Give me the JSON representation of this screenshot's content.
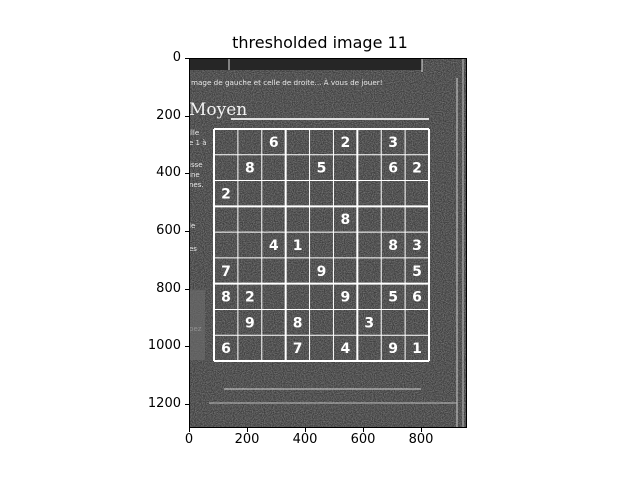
{
  "figure": {
    "title": "thresholded image 11",
    "x_ticks": [
      "0",
      "200",
      "400",
      "600",
      "800"
    ],
    "y_ticks": [
      "0",
      "200",
      "400",
      "600",
      "800",
      "1000",
      "1200"
    ]
  },
  "image": {
    "header_text": "mage de gauche et celle de droite... À vous de jouer!",
    "difficulty": "Moyen",
    "side_snippets": [
      "ille",
      "e 1 à",
      "isse",
      "ine",
      "nes.",
      "le",
      "es",
      "pez"
    ],
    "sudoku_rows": [
      [
        "",
        "",
        "6",
        "",
        "",
        "2",
        "",
        "3",
        ""
      ],
      [
        "",
        "8",
        "",
        "",
        "5",
        "",
        "",
        "6",
        "2"
      ],
      [
        "2",
        "",
        "",
        "",
        "",
        "",
        "",
        "",
        ""
      ],
      [
        "",
        "",
        "",
        "",
        "",
        "8",
        "",
        "",
        ""
      ],
      [
        "",
        "",
        "4",
        "1",
        "",
        "",
        "",
        "8",
        "3"
      ],
      [
        "7",
        "",
        "",
        "",
        "9",
        "",
        "",
        "",
        "5"
      ],
      [
        "8",
        "2",
        "",
        "",
        "",
        "9",
        "",
        "5",
        "6"
      ],
      [
        "",
        "9",
        "",
        "8",
        "",
        "",
        "3",
        "",
        ""
      ],
      [
        "6",
        "",
        "",
        "7",
        "",
        "4",
        "",
        "9",
        "1"
      ]
    ]
  },
  "colors": {
    "image_background": "#4a4a4a",
    "grid_lines": "#ffffff",
    "digits": "#ffffff"
  }
}
